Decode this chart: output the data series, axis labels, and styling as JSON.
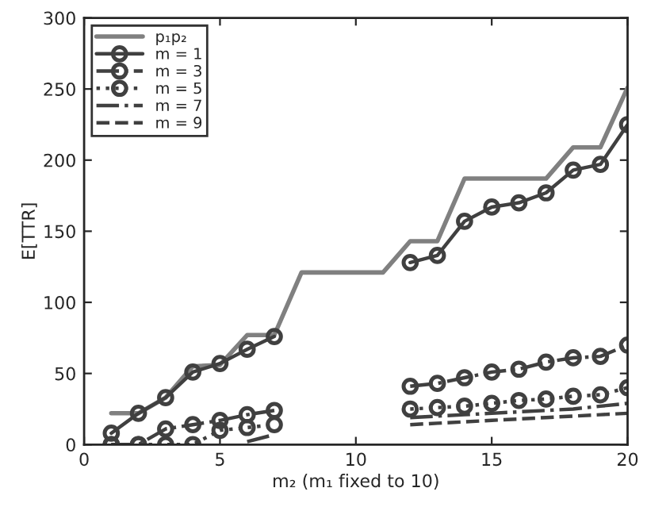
{
  "chart_data": {
    "type": "line",
    "xlabel": "m₂ (m₁ fixed to 10)",
    "ylabel": "E[TTR]",
    "x": [
      1,
      2,
      3,
      4,
      5,
      6,
      7,
      8,
      9,
      10,
      11,
      12,
      13,
      14,
      15,
      16,
      17,
      18,
      19,
      20
    ],
    "xlim": [
      0,
      20
    ],
    "xticks": [
      0,
      5,
      10,
      15,
      20
    ],
    "ylim": [
      0,
      300
    ],
    "yticks": [
      0,
      50,
      100,
      150,
      200,
      250,
      300
    ],
    "grid": false,
    "legend": "top left",
    "series": [
      {
        "name": "p₁p₂",
        "color": "#808080",
        "marker": "none",
        "line_style": "solid",
        "values": [
          22,
          22,
          33,
          55,
          56,
          77,
          77,
          121,
          121,
          121,
          121,
          143,
          143,
          187,
          187,
          187,
          187,
          209,
          209,
          251
        ]
      },
      {
        "name": "m = 1",
        "color": "#404040",
        "marker": "circle",
        "line_style": "solid",
        "values": [
          8,
          22,
          33,
          51,
          57,
          67,
          76,
          null,
          null,
          null,
          null,
          128,
          133,
          157,
          167,
          170,
          177,
          193,
          197,
          225
        ]
      },
      {
        "name": "m = 3",
        "color": "#404040",
        "marker": "circle",
        "line_style": "dashdot",
        "values": [
          0,
          0,
          11,
          14,
          17,
          21,
          24,
          null,
          null,
          null,
          null,
          41,
          43,
          47,
          51,
          53,
          58,
          61,
          62,
          70
        ]
      },
      {
        "name": "m = 5",
        "color": "#404040",
        "marker": "circle",
        "line_style": "dotted",
        "values": [
          0,
          0,
          0,
          0,
          10,
          12,
          14,
          null,
          null,
          null,
          null,
          25,
          26,
          27,
          29,
          31,
          32,
          34,
          35,
          40
        ]
      },
      {
        "name": "m = 7",
        "color": "#404040",
        "marker": "none",
        "line_style": "dashdot",
        "values": [
          null,
          null,
          null,
          null,
          null,
          2,
          7,
          null,
          null,
          null,
          null,
          19,
          20,
          21,
          22,
          23,
          24,
          25,
          27,
          29
        ]
      },
      {
        "name": "m = 9",
        "color": "#404040",
        "marker": "none",
        "line_style": "dashed",
        "values": [
          null,
          null,
          null,
          null,
          null,
          null,
          null,
          null,
          null,
          null,
          null,
          14,
          15,
          16,
          17,
          18,
          19,
          20,
          21,
          22
        ]
      }
    ]
  }
}
